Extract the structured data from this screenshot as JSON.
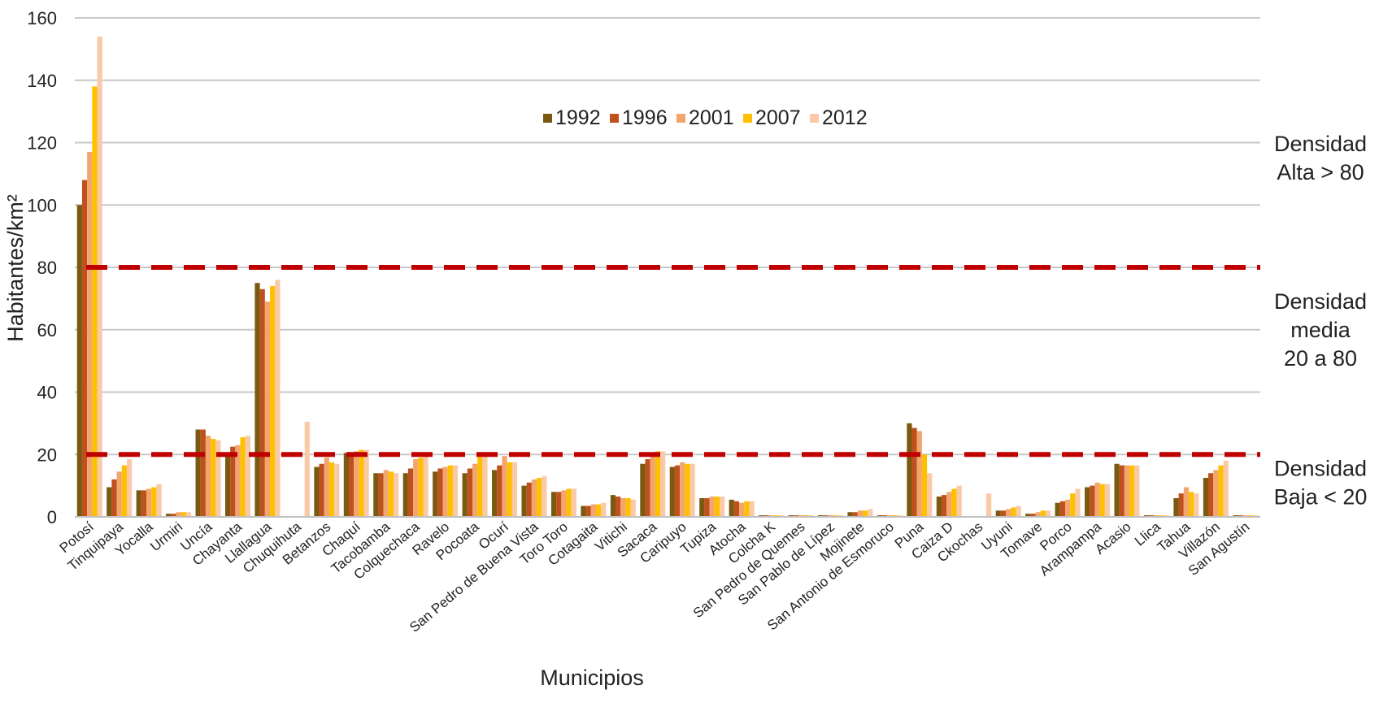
{
  "chart_data": {
    "type": "bar",
    "title": "",
    "xlabel": "Municipios",
    "ylabel": "Habitantes/km²",
    "ylim": [
      0,
      160
    ],
    "yticks": [
      "0",
      "20",
      "40",
      "60",
      "80",
      "100",
      "120",
      "140",
      "160"
    ],
    "grid": true,
    "legend": "top-center",
    "categories": [
      "Potosí",
      "Tinquipaya",
      "Yocalla",
      "Urmiri",
      "Uncía",
      "Chayanta",
      "Llallagua",
      "Chuquihuta",
      "Betanzos",
      "Chaquí",
      "Tacobamba",
      "Colquechaca",
      "Ravelo",
      "Pocoata",
      "Ocurí",
      "San Pedro de Buena Vista",
      "Toro Toro",
      "Cotagaita",
      "Vitichi",
      "Sacaca",
      "Caripuyo",
      "Tupiza",
      "Atocha",
      "Colcha K",
      "San Pedro de Quemes",
      "San Pablo de Lípez",
      "Mojinete",
      "San Antonio de Esmoruco",
      "Puna",
      "Caiza D",
      "Ckochas",
      "Uyuni",
      "Tomave",
      "Porco",
      "Arampampa",
      "Acasio",
      "Llica",
      "Tahua",
      "Villazón",
      "San Agustín"
    ],
    "series": [
      {
        "name": "1992",
        "color": "#7a5a10",
        "values": [
          100,
          9.5,
          8.5,
          1,
          28,
          20.5,
          75,
          0,
          16,
          20.5,
          14,
          14,
          14.5,
          14,
          15,
          10,
          8,
          3.5,
          7,
          17,
          16,
          6,
          5.5,
          0.5,
          0.5,
          0.5,
          1.5,
          0.5,
          30,
          6.5,
          0,
          2,
          1,
          4.5,
          9.5,
          17,
          0.5,
          6,
          12.5,
          0.5
        ]
      },
      {
        "name": "1996",
        "color": "#c0501e",
        "values": [
          108,
          12,
          8.5,
          1,
          28,
          22.5,
          73,
          0,
          17,
          20,
          14,
          15.5,
          15.5,
          15.5,
          16.5,
          11,
          8,
          3.5,
          6.5,
          18.5,
          16.5,
          6,
          5,
          0.5,
          0.5,
          0.5,
          1.5,
          0.5,
          28.5,
          7,
          0,
          2,
          1,
          5,
          10,
          16.5,
          0.5,
          7.5,
          14,
          0.5
        ]
      },
      {
        "name": "2001",
        "color": "#f2a66e",
        "values": [
          117,
          14.5,
          9,
          1.5,
          26,
          23,
          69,
          0,
          19,
          21,
          15,
          18.5,
          16,
          17,
          19.5,
          12,
          8.5,
          4,
          6,
          20,
          17.5,
          6.5,
          4.5,
          0.5,
          0.5,
          0.5,
          2,
          0.5,
          27.5,
          8,
          0,
          2.5,
          1.5,
          5.5,
          11,
          16.5,
          0.5,
          9.5,
          15,
          0.5
        ]
      },
      {
        "name": "2007",
        "color": "#ffc000",
        "values": [
          138,
          16.5,
          9.5,
          1.5,
          25,
          25.5,
          74,
          0,
          17.5,
          21.5,
          14.5,
          19,
          16.5,
          19.5,
          17.5,
          12.5,
          9,
          4,
          6,
          21,
          17,
          6.5,
          5,
          0.5,
          0.5,
          0.5,
          2,
          0.5,
          20,
          9,
          0,
          3,
          2,
          7.5,
          10.5,
          16.5,
          0.5,
          8,
          16.5,
          0.5
        ]
      },
      {
        "name": "2012",
        "color": "#f9c9a8",
        "values": [
          154,
          18.5,
          10.5,
          1.5,
          24.5,
          26,
          76,
          30.5,
          17,
          21.5,
          14,
          20.5,
          16.5,
          20,
          17.5,
          13,
          9,
          4.5,
          5.5,
          21,
          17,
          6.5,
          5,
          0.5,
          0.5,
          0.5,
          2.5,
          0.5,
          14,
          10,
          7.5,
          3.5,
          2,
          9,
          10.5,
          16.5,
          0.5,
          7.5,
          18,
          0.5
        ]
      }
    ],
    "thresholds": [
      {
        "value": 80,
        "color": "#c00000"
      },
      {
        "value": 20,
        "color": "#c00000"
      }
    ],
    "annotations": [
      {
        "lines": [
          "Densidad",
          "Alta > 80"
        ],
        "value": 115
      },
      {
        "lines": [
          "Densidad",
          "media",
          "20 a 80"
        ],
        "value": 60
      },
      {
        "lines": [
          "Densidad",
          "Baja < 20"
        ],
        "value": 11
      }
    ]
  }
}
